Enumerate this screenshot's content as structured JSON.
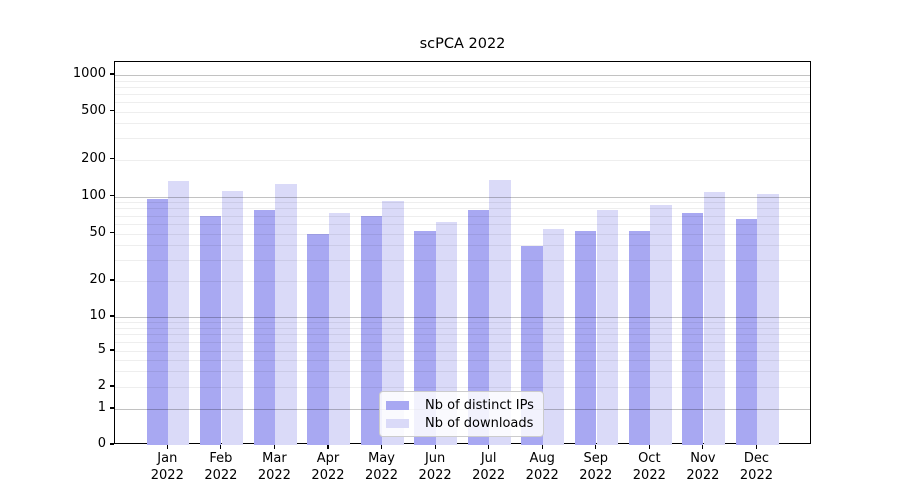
{
  "chart_data": {
    "type": "bar",
    "title": "scPCA 2022",
    "categories": [
      "Jan",
      "Feb",
      "Mar",
      "Apr",
      "May",
      "Jun",
      "Jul",
      "Aug",
      "Sep",
      "Oct",
      "Nov",
      "Dec"
    ],
    "category_year": "2022",
    "series": [
      {
        "name": "Nb of distinct IPs",
        "color": "#a8a8f2",
        "values": [
          95,
          70,
          78,
          50,
          70,
          52,
          77,
          39,
          52,
          52,
          74,
          66
        ]
      },
      {
        "name": "Nb of downloads",
        "color": "#dadaf8",
        "values": [
          134,
          110,
          126,
          74,
          92,
          62,
          135,
          54,
          77,
          85,
          108,
          105
        ]
      }
    ],
    "yscale": "symlog",
    "yticks": [
      0,
      1,
      2,
      5,
      10,
      20,
      50,
      100,
      200,
      500,
      1000
    ],
    "ylim": [
      0,
      1300
    ],
    "grid": "on",
    "legend_position": "lower center"
  }
}
